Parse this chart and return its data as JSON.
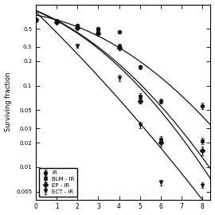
{
  "title": "",
  "xlabel": "",
  "ylabel": "Surviving fraction",
  "xlim": [
    0,
    8.4
  ],
  "ylim": [
    0.004,
    1.0
  ],
  "series": {
    "IR": {
      "x": [
        0,
        1,
        2,
        3,
        4,
        5,
        6,
        8
      ],
      "y": [
        0.65,
        0.63,
        0.55,
        0.5,
        0.46,
        0.17,
        0.065,
        0.057
      ],
      "yerr": [
        0.0,
        0.01,
        0.01,
        0.01,
        0.015,
        0.01,
        0.005,
        0.005
      ],
      "marker": "o",
      "color": "#111111",
      "label": "IR"
    },
    "BLM-IR": {
      "x": [
        0,
        1,
        2,
        3,
        4,
        5,
        6,
        8
      ],
      "y": [
        0.65,
        0.62,
        0.53,
        0.46,
        0.31,
        0.075,
        0.022,
        0.021
      ],
      "yerr": [
        0.0,
        0.01,
        0.01,
        0.01,
        0.015,
        0.006,
        0.002,
        0.002
      ],
      "marker": "s",
      "color": "#111111",
      "label": "BLM - IR"
    },
    "EP-IR": {
      "x": [
        0,
        1,
        2,
        3,
        4,
        5,
        6,
        8
      ],
      "y": [
        0.65,
        0.6,
        0.52,
        0.44,
        0.29,
        0.065,
        0.02,
        0.016
      ],
      "yerr": [
        0.0,
        0.01,
        0.01,
        0.01,
        0.015,
        0.005,
        0.002,
        0.002
      ],
      "marker": "D",
      "color": "#111111",
      "label": "EP - IR"
    },
    "ECT-IR": {
      "x": [
        0,
        2,
        4,
        5,
        6,
        8
      ],
      "y": [
        0.65,
        0.31,
        0.125,
        0.033,
        0.0065,
        0.006
      ],
      "yerr": [
        0.0,
        0.015,
        0.01,
        0.003,
        0.0005,
        0.0005
      ],
      "marker": "v",
      "color": "#111111",
      "label": "ECT - IR"
    }
  },
  "yticks": [
    0.005,
    0.01,
    0.02,
    0.03,
    0.05,
    0.1,
    0.2,
    0.3,
    0.5
  ],
  "ytick_labels": [
    "0.005",
    "0.01",
    "0.02",
    "0.03",
    "0.05",
    "0.1",
    "0.2",
    "0.3",
    "0.5"
  ],
  "xticks": [
    0,
    1,
    2,
    3,
    4,
    5,
    6,
    7,
    8
  ]
}
